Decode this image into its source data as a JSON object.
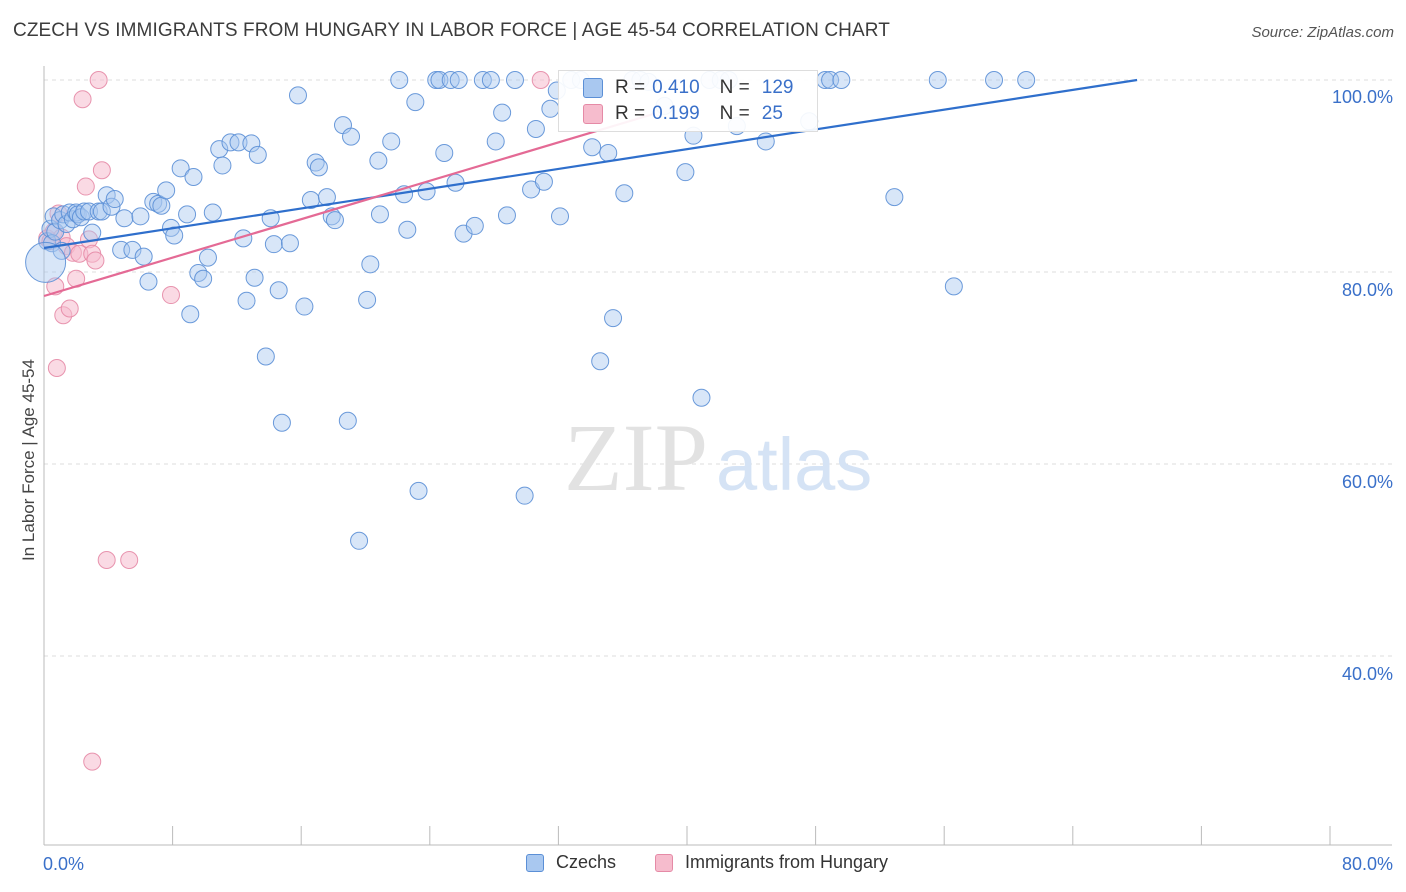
{
  "title": "CZECH VS IMMIGRANTS FROM HUNGARY IN LABOR FORCE | AGE 45-54 CORRELATION CHART",
  "source": "Source: ZipAtlas.com",
  "watermark": {
    "zip": "ZIP",
    "atlas": "atlas"
  },
  "stats": {
    "czechs": {
      "r_label": "R =",
      "r": "0.410",
      "n_label": "N =",
      "n": "129"
    },
    "hungary": {
      "r_label": "R =",
      "r": "0.199",
      "n_label": "N =",
      "n": "25"
    }
  },
  "colors": {
    "blue_fill": "#a9c8f0",
    "blue_stroke": "#5b8fd6",
    "blue_line": "#2f6fcc",
    "pink_fill": "#f6bccd",
    "pink_stroke": "#e58aa6",
    "pink_line": "#e46a95",
    "axis_text": "#3a70c9",
    "grid": "#dddddd"
  },
  "chart_data": {
    "type": "scatter",
    "title": "CZECH VS IMMIGRANTS FROM HUNGARY IN LABOR FORCE | AGE 45-54 CORRELATION CHART",
    "xlabel": "",
    "ylabel": "In Labor Force | Age 45-54",
    "xlim": [
      0,
      80
    ],
    "ylim": [
      20,
      102
    ],
    "x_tick_labels": [
      "0.0%",
      "80.0%"
    ],
    "y_ticks": [
      40,
      60,
      80,
      100
    ],
    "y_tick_labels": [
      "40.0%",
      "60.0%",
      "80.0%",
      "100.0%"
    ],
    "legend": [
      "Czechs",
      "Immigrants from Hungary"
    ],
    "series": [
      {
        "name": "Czechs",
        "trendline": {
          "x": [
            0,
            68
          ],
          "y": [
            82.5,
            100
          ]
        },
        "points": [
          [
            0.2,
            83.2
          ],
          [
            0.4,
            84.5
          ],
          [
            0.5,
            83.0
          ],
          [
            0.6,
            85.8
          ],
          [
            0.7,
            84.2
          ],
          [
            1.0,
            85.4
          ],
          [
            1.1,
            82.2
          ],
          [
            1.2,
            86.0
          ],
          [
            1.4,
            85.0
          ],
          [
            1.6,
            86.2
          ],
          [
            1.8,
            85.5
          ],
          [
            2.0,
            86.2
          ],
          [
            2.1,
            86.0
          ],
          [
            2.3,
            85.7
          ],
          [
            2.5,
            86.3
          ],
          [
            2.8,
            86.3
          ],
          [
            3.0,
            84.1
          ],
          [
            3.4,
            86.3
          ],
          [
            3.6,
            86.3
          ],
          [
            3.9,
            88.0
          ],
          [
            4.2,
            86.8
          ],
          [
            4.4,
            87.6
          ],
          [
            4.8,
            82.3
          ],
          [
            5.0,
            85.6
          ],
          [
            5.5,
            82.3
          ],
          [
            6.0,
            85.8
          ],
          [
            6.2,
            81.6
          ],
          [
            6.5,
            79.0
          ],
          [
            6.8,
            87.3
          ],
          [
            7.1,
            87.1
          ],
          [
            7.3,
            86.9
          ],
          [
            7.6,
            88.5
          ],
          [
            7.9,
            84.6
          ],
          [
            8.1,
            83.8
          ],
          [
            8.5,
            90.8
          ],
          [
            8.9,
            86.0
          ],
          [
            9.1,
            75.6
          ],
          [
            9.3,
            89.9
          ],
          [
            9.6,
            79.9
          ],
          [
            9.9,
            79.3
          ],
          [
            10.2,
            81.5
          ],
          [
            10.5,
            86.2
          ],
          [
            10.9,
            92.8
          ],
          [
            11.1,
            91.1
          ],
          [
            11.6,
            93.5
          ],
          [
            12.1,
            93.5
          ],
          [
            12.4,
            83.5
          ],
          [
            12.6,
            77.0
          ],
          [
            12.9,
            93.4
          ],
          [
            13.1,
            79.4
          ],
          [
            13.3,
            92.2
          ],
          [
            13.8,
            71.2
          ],
          [
            14.1,
            85.6
          ],
          [
            14.3,
            82.9
          ],
          [
            14.6,
            78.1
          ],
          [
            14.8,
            64.3
          ],
          [
            15.3,
            83.0
          ],
          [
            15.8,
            98.4
          ],
          [
            16.2,
            76.4
          ],
          [
            16.6,
            87.5
          ],
          [
            16.9,
            91.4
          ],
          [
            17.1,
            90.9
          ],
          [
            17.6,
            87.8
          ],
          [
            17.9,
            85.8
          ],
          [
            18.1,
            85.4
          ],
          [
            18.6,
            95.3
          ],
          [
            18.9,
            64.5
          ],
          [
            19.1,
            94.1
          ],
          [
            19.6,
            52.0
          ],
          [
            20.1,
            77.1
          ],
          [
            20.3,
            80.8
          ],
          [
            20.8,
            91.6
          ],
          [
            20.9,
            86.0
          ],
          [
            21.6,
            93.6
          ],
          [
            22.1,
            100.0
          ],
          [
            22.4,
            88.1
          ],
          [
            22.6,
            84.4
          ],
          [
            23.1,
            97.7
          ],
          [
            23.3,
            57.2
          ],
          [
            23.8,
            88.4
          ],
          [
            24.4,
            100.0
          ],
          [
            24.6,
            100.0
          ],
          [
            24.9,
            92.4
          ],
          [
            25.3,
            100.0
          ],
          [
            25.6,
            89.3
          ],
          [
            25.8,
            100.0
          ],
          [
            26.1,
            84.0
          ],
          [
            26.8,
            84.8
          ],
          [
            27.3,
            100.0
          ],
          [
            27.8,
            100.0
          ],
          [
            28.1,
            93.6
          ],
          [
            28.5,
            96.6
          ],
          [
            28.8,
            85.9
          ],
          [
            29.3,
            100.0
          ],
          [
            29.9,
            56.7
          ],
          [
            30.3,
            88.6
          ],
          [
            30.6,
            94.9
          ],
          [
            31.1,
            89.4
          ],
          [
            31.5,
            97.0
          ],
          [
            31.9,
            98.9
          ],
          [
            32.1,
            85.8
          ],
          [
            32.8,
            100.0
          ],
          [
            33.4,
            100.0
          ],
          [
            34.1,
            93.0
          ],
          [
            34.6,
            70.7
          ],
          [
            35.1,
            92.4
          ],
          [
            35.4,
            75.2
          ],
          [
            36.1,
            88.2
          ],
          [
            36.6,
            100.0
          ],
          [
            37.1,
            100.0
          ],
          [
            37.6,
            99.8
          ],
          [
            38.6,
            97.3
          ],
          [
            39.9,
            90.4
          ],
          [
            40.4,
            94.2
          ],
          [
            40.9,
            66.9
          ],
          [
            41.4,
            100.0
          ],
          [
            42.1,
            100.0
          ],
          [
            42.6,
            100.0
          ],
          [
            43.1,
            95.2
          ],
          [
            44.9,
            93.6
          ],
          [
            47.6,
            95.7
          ],
          [
            48.6,
            100.0
          ],
          [
            48.9,
            100.0
          ],
          [
            49.6,
            100.0
          ],
          [
            52.9,
            87.8
          ],
          [
            56.6,
            78.5
          ],
          [
            55.6,
            100.0
          ],
          [
            59.1,
            100.0
          ],
          [
            61.1,
            100.0
          ],
          [
            0.1,
            81.0
          ]
        ]
      },
      {
        "name": "Immigrants from Hungary",
        "trendline": {
          "x": [
            0,
            38
          ],
          "y": [
            77.5,
            96.5
          ]
        },
        "points": [
          [
            0.2,
            83.5
          ],
          [
            0.4,
            83.2
          ],
          [
            0.6,
            84.2
          ],
          [
            0.7,
            78.5
          ],
          [
            0.8,
            70.0
          ],
          [
            0.9,
            86.1
          ],
          [
            1.1,
            83.6
          ],
          [
            1.2,
            75.5
          ],
          [
            1.4,
            82.7
          ],
          [
            1.6,
            76.2
          ],
          [
            1.8,
            82.0
          ],
          [
            2.0,
            79.3
          ],
          [
            2.2,
            81.9
          ],
          [
            2.4,
            98.0
          ],
          [
            2.6,
            88.9
          ],
          [
            2.8,
            83.4
          ],
          [
            3.0,
            81.9
          ],
          [
            3.2,
            81.2
          ],
          [
            3.0,
            29.0
          ],
          [
            3.4,
            100.0
          ],
          [
            3.6,
            90.6
          ],
          [
            3.9,
            50.0
          ],
          [
            5.3,
            50.0
          ],
          [
            7.9,
            77.6
          ],
          [
            30.9,
            100.0
          ]
        ]
      }
    ]
  }
}
